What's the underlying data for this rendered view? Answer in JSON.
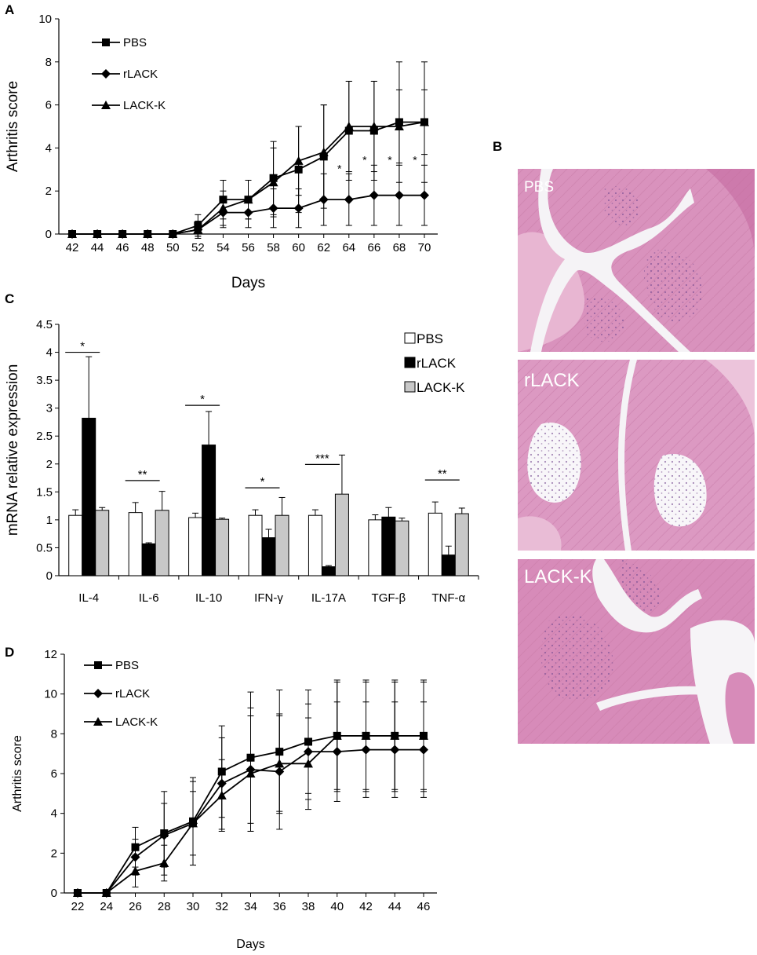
{
  "panel_letters": {
    "a": "A",
    "b": "B",
    "c": "C",
    "d": "D"
  },
  "histology": {
    "labels": [
      "PBS",
      "rLACK",
      "LACK-K"
    ]
  },
  "colors": {
    "axis": "#000000",
    "pbs_bar": "#ffffff",
    "rlack_bar": "#000000",
    "lackk_bar": "#c8c8c8",
    "tissue_pink": "#d98fb8",
    "tissue_light": "#eec6dd",
    "tissue_purple": "#8a5a9e",
    "gap_white": "#f4f2f5"
  },
  "chart_data": [
    {
      "panel": "A",
      "type": "line",
      "xlabel": "Days",
      "ylabel": "Arthritis score",
      "xlim": [
        42,
        70
      ],
      "ylim": [
        0,
        10
      ],
      "yticks": [
        0,
        2,
        4,
        6,
        8,
        10
      ],
      "x": [
        42,
        44,
        46,
        48,
        50,
        52,
        54,
        56,
        58,
        60,
        62,
        64,
        66,
        68,
        70
      ],
      "legend": "top-left",
      "series": [
        {
          "name": "PBS",
          "marker": "square",
          "values": [
            0,
            0,
            0,
            0,
            0,
            0.4,
            1.6,
            1.6,
            2.6,
            3.0,
            3.6,
            4.8,
            4.8,
            5.2,
            5.2
          ],
          "errors": [
            0,
            0,
            0,
            0,
            0,
            0.5,
            0.9,
            0.9,
            1.7,
            2.0,
            2.4,
            2.3,
            2.3,
            2.8,
            2.8
          ]
        },
        {
          "name": "rLACK",
          "marker": "diamond",
          "values": [
            0,
            0,
            0,
            0,
            0,
            0.2,
            1.0,
            1.0,
            1.2,
            1.2,
            1.6,
            1.6,
            1.8,
            1.8,
            1.8
          ],
          "errors": [
            0,
            0,
            0,
            0,
            0,
            0.3,
            0.7,
            0.7,
            0.9,
            0.9,
            1.2,
            1.2,
            1.4,
            1.4,
            1.4
          ]
        },
        {
          "name": "LACK-K",
          "marker": "triangle",
          "values": [
            0,
            0,
            0,
            0,
            0,
            0.2,
            1.2,
            1.6,
            2.4,
            3.4,
            3.8,
            5.0,
            5.0,
            5.0,
            5.2
          ],
          "errors": [
            0,
            0,
            0,
            0,
            0,
            0.4,
            0.8,
            0.9,
            1.6,
            1.6,
            2.2,
            2.1,
            2.1,
            1.7,
            1.5
          ]
        }
      ],
      "annotations": [
        {
          "x": 64,
          "text": "*"
        },
        {
          "x": 66,
          "text": "*"
        },
        {
          "x": 68,
          "text": "*"
        },
        {
          "x": 70,
          "text": "*"
        }
      ]
    },
    {
      "panel": "C",
      "type": "bar",
      "ylabel": "mRNA relative expression",
      "ylim": [
        0,
        4.5
      ],
      "yticks": [
        0,
        0.5,
        1,
        1.5,
        2,
        2.5,
        3,
        3.5,
        4,
        4.5
      ],
      "categories": [
        "IL-4",
        "IL-6",
        "IL-10",
        "IFN-γ",
        "IL-17A",
        "TGF-β",
        "TNF-α"
      ],
      "legend": "top-right",
      "series": [
        {
          "name": "PBS",
          "values": [
            1.08,
            1.13,
            1.04,
            1.08,
            1.08,
            1.0,
            1.12
          ],
          "errors": [
            0.1,
            0.18,
            0.08,
            0.1,
            0.1,
            0.09,
            0.2
          ]
        },
        {
          "name": "rLACK",
          "values": [
            2.82,
            0.57,
            2.34,
            0.68,
            0.16,
            1.05,
            0.37
          ],
          "errors": [
            1.1,
            0.02,
            0.6,
            0.15,
            0.02,
            0.17,
            0.16
          ]
        },
        {
          "name": "LACK-K",
          "values": [
            1.17,
            1.17,
            1.01,
            1.08,
            1.46,
            0.98,
            1.11
          ],
          "errors": [
            0.05,
            0.34,
            0.02,
            0.32,
            0.7,
            0.05,
            0.1
          ]
        }
      ],
      "significance": [
        "*",
        "**",
        "*",
        "*",
        "***",
        "",
        "**"
      ]
    },
    {
      "panel": "D",
      "type": "line",
      "xlabel": "Days",
      "ylabel": "Arthritis score",
      "xlim": [
        22,
        46
      ],
      "ylim": [
        0,
        12
      ],
      "yticks": [
        0,
        2,
        4,
        6,
        8,
        10,
        12
      ],
      "x": [
        22,
        24,
        26,
        28,
        30,
        32,
        34,
        36,
        38,
        40,
        42,
        44,
        46
      ],
      "legend": "top-left",
      "series": [
        {
          "name": "PBS",
          "marker": "square",
          "values": [
            0,
            0,
            2.3,
            3.0,
            3.6,
            6.1,
            6.8,
            7.1,
            7.6,
            7.9,
            7.9,
            7.9,
            7.9
          ],
          "errors": [
            0,
            0,
            1.0,
            2.1,
            2.2,
            2.3,
            3.3,
            3.1,
            2.6,
            2.8,
            2.8,
            2.8,
            2.8
          ]
        },
        {
          "name": "rLACK",
          "marker": "diamond",
          "values": [
            0,
            0,
            1.8,
            2.9,
            3.5,
            5.5,
            6.2,
            6.1,
            7.1,
            7.1,
            7.2,
            7.2,
            7.2
          ],
          "errors": [
            0,
            0,
            0.9,
            1.6,
            2.1,
            2.3,
            3.1,
            2.9,
            2.4,
            2.5,
            2.4,
            2.4,
            2.4
          ]
        },
        {
          "name": "LACK-K",
          "marker": "triangle",
          "values": [
            0,
            0,
            1.1,
            1.5,
            3.5,
            4.9,
            6.0,
            6.5,
            6.5,
            7.9,
            7.9,
            7.9,
            7.9
          ],
          "errors": [
            0,
            0,
            0.8,
            0.9,
            1.6,
            1.8,
            2.9,
            2.4,
            2.3,
            2.7,
            2.7,
            2.7,
            2.7
          ]
        }
      ]
    }
  ]
}
